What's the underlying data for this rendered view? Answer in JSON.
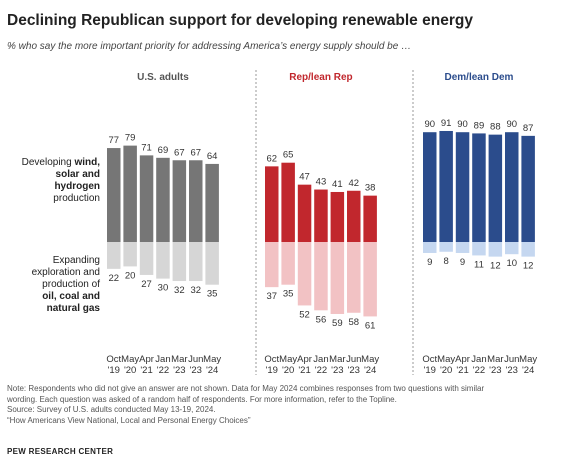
{
  "title": "Declining Republican support for developing renewable energy",
  "subtitle": "% who say the more important priority for addressing America’s energy supply should be …",
  "rows": {
    "top": {
      "pre": "Developing ",
      "bold1": "wind,",
      "bold2": "solar and",
      "bold3": "hydrogen",
      "post": "production"
    },
    "bottom": {
      "pre1": "Expanding",
      "pre2": "exploration and",
      "pre3": "production of",
      "bold1": "oil, coal and",
      "bold2": "natural gas"
    }
  },
  "chart_data": {
    "type": "bar",
    "categories": [
      "Oct '19",
      "May '20",
      "Apr '21",
      "Jan '22",
      "Mar '23",
      "Jun '23",
      "May '24"
    ],
    "category_lines": [
      [
        "Oct",
        "'19"
      ],
      [
        "May",
        "'20"
      ],
      [
        "Apr",
        "'21"
      ],
      [
        "Jan",
        "'22"
      ],
      [
        "Mar",
        "'23"
      ],
      [
        "Jun",
        "'23"
      ],
      [
        "May",
        "'24"
      ]
    ],
    "panels": [
      {
        "name": "U.S. adults",
        "renewable": [
          77,
          79,
          71,
          69,
          67,
          67,
          64
        ],
        "fossil": [
          22,
          20,
          27,
          30,
          32,
          32,
          35
        ],
        "colors": {
          "renewable": "#767676",
          "fossil": "#d6d6d6",
          "header": "#555555"
        }
      },
      {
        "name": "Rep/lean Rep",
        "renewable": [
          62,
          65,
          47,
          43,
          41,
          42,
          38
        ],
        "fossil": [
          37,
          35,
          52,
          56,
          59,
          58,
          61
        ],
        "colors": {
          "renewable": "#c1272d",
          "fossil": "#f2c2c4",
          "header": "#c1272d"
        }
      },
      {
        "name": "Dem/lean Dem",
        "renewable": [
          90,
          91,
          90,
          89,
          88,
          90,
          87
        ],
        "fossil": [
          9,
          8,
          9,
          11,
          12,
          10,
          12
        ],
        "colors": {
          "renewable": "#2b4c8c",
          "fossil": "#c5d7f0",
          "header": "#2b4c8c"
        }
      }
    ],
    "grid": false,
    "legend": "none"
  },
  "notes": [
    "Note: Respondents who did not give an answer are not shown. Data for May 2024 combines responses from two questions with similar",
    "wording. Each question was asked of a random half of respondents. For more information, refer to the Topline.",
    "Source: Survey of U.S. adults conducted May 13-19, 2024.",
    "“How Americans View National, Local and Personal Energy Choices”"
  ],
  "brand": "PEW RESEARCH CENTER"
}
